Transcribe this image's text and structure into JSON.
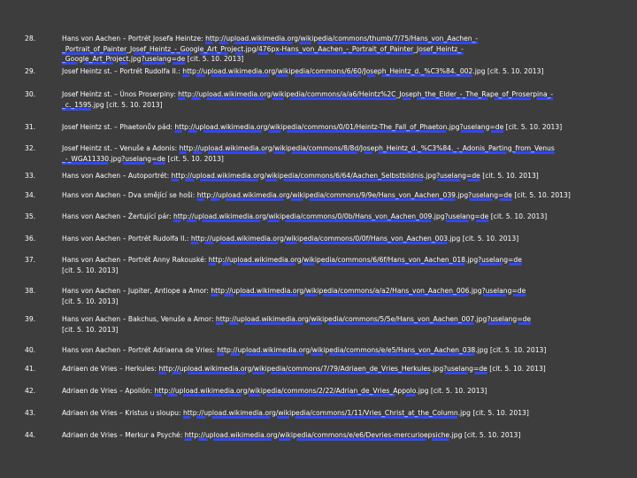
{
  "entries": [
    {
      "num": "28.",
      "lines": [
        {
          "pre": "Hans von Aachen – Portrét Josefa Heintze: ",
          "link": "http://upload.wikimedia.org/wikipedia/commons/thumb/7/75/Hans_von_Aachen_-",
          "post": ""
        },
        {
          "pre": "",
          "link": "_Portrait_of_Painter_Josef_Heintz_-_Google_Art_Project.jpg/476px-Hans_von_Aachen_-_Portrait_of_Painter_Josef_Heintz_-",
          "post": ""
        },
        {
          "pre": "",
          "link": "_Google_Art_Project.jpg?uselang=de",
          "post": " [cit. 5. 10. 2013]"
        }
      ]
    },
    {
      "num": "29.",
      "lines": [
        {
          "pre": "Josef Heintz st. – Portrét Rudolfa II.: ",
          "link": "http://upload.wikimedia.org/wikipedia/commons/6/60/Joseph_Heintz_d._%C3%84._002.jpg",
          "post": " [cit. 5. 10. 2013]"
        }
      ]
    },
    {
      "num": "30.",
      "lines": [
        {
          "pre": "Josef Heintz st. – Únos Proserpiny: ",
          "link": "http://upload.wikimedia.org/wikipedia/commons/a/a6/Heintz%2C_Joseph_the_Elder_-_The_Rape_of_Proserpina_-",
          "post": ""
        },
        {
          "pre": "",
          "link": "_c._1595.jpg",
          "post": " [cit. 5. 10. 2013]"
        }
      ]
    },
    {
      "num": "31.",
      "lines": [
        {
          "pre": "Josef Heintz st. – Phaetonův pád: ",
          "link": "http://upload.wikimedia.org/wikipedia/commons/0/01/Heintz-The_Fall_of_Phaeton.jpg?uselang=de",
          "post": " [cit. 5. 10. 2013]"
        }
      ]
    },
    {
      "num": "32.",
      "lines": [
        {
          "pre": "Josef Heintz st. – Venuše a Adonis: ",
          "link": "http://upload.wikimedia.org/wikipedia/commons/8/8d/Joseph_Heintz_d._%C3%84._-_Adonis_Parting_from_Venus",
          "post": ""
        },
        {
          "pre": "",
          "link": "_-_WGA11330.jpg?uselang=de",
          "post": " [cit. 5. 10. 2013]"
        }
      ]
    },
    {
      "num": "33.",
      "lines": [
        {
          "pre": "Hans von Aachen – Autoportrét: ",
          "link": "http://upload.wikimedia.org/wikipedia/commons/6/64/Aachen_Selbstbildnis.jpg?uselang=de",
          "post": " [cit. 5. 10. 2013]"
        }
      ]
    },
    {
      "num": "34.",
      "lines": [
        {
          "pre": "Hans von Aachen – Dva smějící se hoši: ",
          "link": "http://upload.wikimedia.org/wikipedia/commons/9/9e/Hans_von_Aachen_039.jpg?uselang=de",
          "post": " [cit. 5. 10. 2013]"
        }
      ]
    },
    {
      "num": "35.",
      "lines": [
        {
          "pre": "Hans von Aachen – Žertující pár: ",
          "link": "http://upload.wikimedia.org/wikipedia/commons/0/0b/Hans_von_Aachen_009.jpg?uselang=de",
          "post": " [cit. 5. 10. 2013]"
        }
      ]
    },
    {
      "num": "36.",
      "lines": [
        {
          "pre": "Hans von Aachen – Portrét Rudolfa II.: ",
          "link": "http://upload.wikimedia.org/wikipedia/commons/0/0f/Hans_von_Aachen_003.jpg",
          "post": " [cit. 5. 10. 2013]"
        }
      ]
    },
    {
      "num": "37.",
      "lines": [
        {
          "pre": "Hans von Aachen – Portrét Anny Rakouské: ",
          "link": "http://upload.wikimedia.org/wikipedia/commons/6/6f/Hans_von_Aachen_018.jpg?uselang=de",
          "post": ""
        },
        {
          "pre": "[cit. 5. 10. 2013]",
          "link": "",
          "post": ""
        }
      ]
    },
    {
      "num": "38.",
      "lines": [
        {
          "pre": "Hans von Aachen – Jupiter, Antiope a Amor: ",
          "link": "http://upload.wikimedia.org/wikipedia/commons/a/a2/Hans_von_Aachen_006.jpg?uselang=de",
          "post": ""
        },
        {
          "pre": "[cit. 5. 10. 2013]",
          "link": "",
          "post": ""
        }
      ]
    },
    {
      "num": "39.",
      "lines": [
        {
          "pre": "Hans von Aachen – Bakchus, Venuše a Amor: ",
          "link": "http://upload.wikimedia.org/wikipedia/commons/5/5e/Hans_von_Aachen_007.jpg?uselang=de",
          "post": ""
        },
        {
          "pre": "[cit. 5. 10. 2013]",
          "link": "",
          "post": ""
        }
      ]
    },
    {
      "num": "40.",
      "lines": [
        {
          "pre": "Hans von Aachen – Portrét Adriaena de Vries: ",
          "link": "http://upload.wikimedia.org/wikipedia/commons/e/e5/Hans_von_Aachen_038.jpg",
          "post": " [cit. 5. 10. 2013]"
        }
      ]
    },
    {
      "num": "41.",
      "lines": [
        {
          "pre": "Adriaen de Vries – Herkules: ",
          "link": "http://upload.wikimedia.org/wikipedia/commons/7/79/Adriaen_de_Vries_Herkules.jpg?uselang=de",
          "post": " [cit. 5. 10. 2013]"
        }
      ]
    },
    {
      "num": "42.",
      "lines": [
        {
          "pre": "Adriaen de Vries – Apollón: ",
          "link": "http://upload.wikimedia.org/wikipedia/commons/2/22/Adrian_de_Vries_Appolo.jpg",
          "post": " [cit. 5. 10. 2013]"
        }
      ]
    },
    {
      "num": "43.",
      "lines": [
        {
          "pre": "Adriaen de Vries – Kristus u sloupu: ",
          "link": "http://upload.wikimedia.org/wikipedia/commons/1/11/Vries_Christ_at_the_Column.jpg",
          "post": " [cit. 5. 10. 2013]"
        }
      ]
    },
    {
      "num": "44.",
      "lines": [
        {
          "pre": "Adriaen de Vries – Merkur a Psyché: ",
          "link": "http://upload.wikimedia.org/wikipedia/commons/e/e6/Devries-mercurioepsiche.jpg",
          "post": " [cit. 5. 10. 2013]"
        }
      ]
    }
  ]
}
